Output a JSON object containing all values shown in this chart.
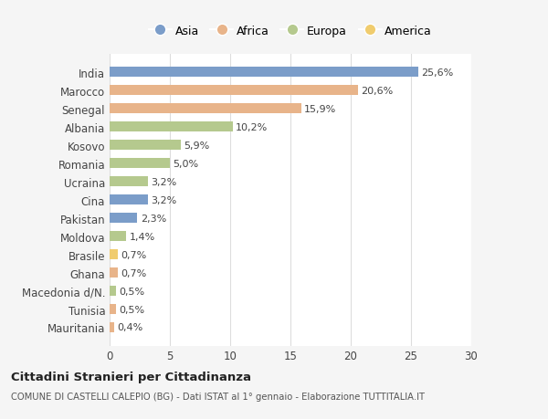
{
  "categories": [
    "India",
    "Marocco",
    "Senegal",
    "Albania",
    "Kosovo",
    "Romania",
    "Ucraina",
    "Cina",
    "Pakistan",
    "Moldova",
    "Brasile",
    "Ghana",
    "Macedonia d/N.",
    "Tunisia",
    "Mauritania"
  ],
  "values": [
    25.6,
    20.6,
    15.9,
    10.2,
    5.9,
    5.0,
    3.2,
    3.2,
    2.3,
    1.4,
    0.7,
    0.7,
    0.5,
    0.5,
    0.4
  ],
  "labels": [
    "25,6%",
    "20,6%",
    "15,9%",
    "10,2%",
    "5,9%",
    "5,0%",
    "3,2%",
    "3,2%",
    "2,3%",
    "1,4%",
    "0,7%",
    "0,7%",
    "0,5%",
    "0,5%",
    "0,4%"
  ],
  "continents": [
    "Asia",
    "Africa",
    "Africa",
    "Europa",
    "Europa",
    "Europa",
    "Europa",
    "Asia",
    "Asia",
    "Europa",
    "America",
    "Africa",
    "Europa",
    "Africa",
    "Africa"
  ],
  "colors": {
    "Asia": "#7b9dc9",
    "Africa": "#e8b48a",
    "Europa": "#b5c98e",
    "America": "#f0cc6e"
  },
  "legend_order": [
    "Asia",
    "Africa",
    "Europa",
    "America"
  ],
  "title": "Cittadini Stranieri per Cittadinanza",
  "subtitle": "COMUNE DI CASTELLI CALEPIO (BG) - Dati ISTAT al 1° gennaio - Elaborazione TUTTITALIA.IT",
  "xlim": [
    0,
    30
  ],
  "xticks": [
    0,
    5,
    10,
    15,
    20,
    25,
    30
  ],
  "background_color": "#f5f5f5",
  "bar_background": "#ffffff",
  "grid_color": "#dddddd",
  "bar_height": 0.55
}
